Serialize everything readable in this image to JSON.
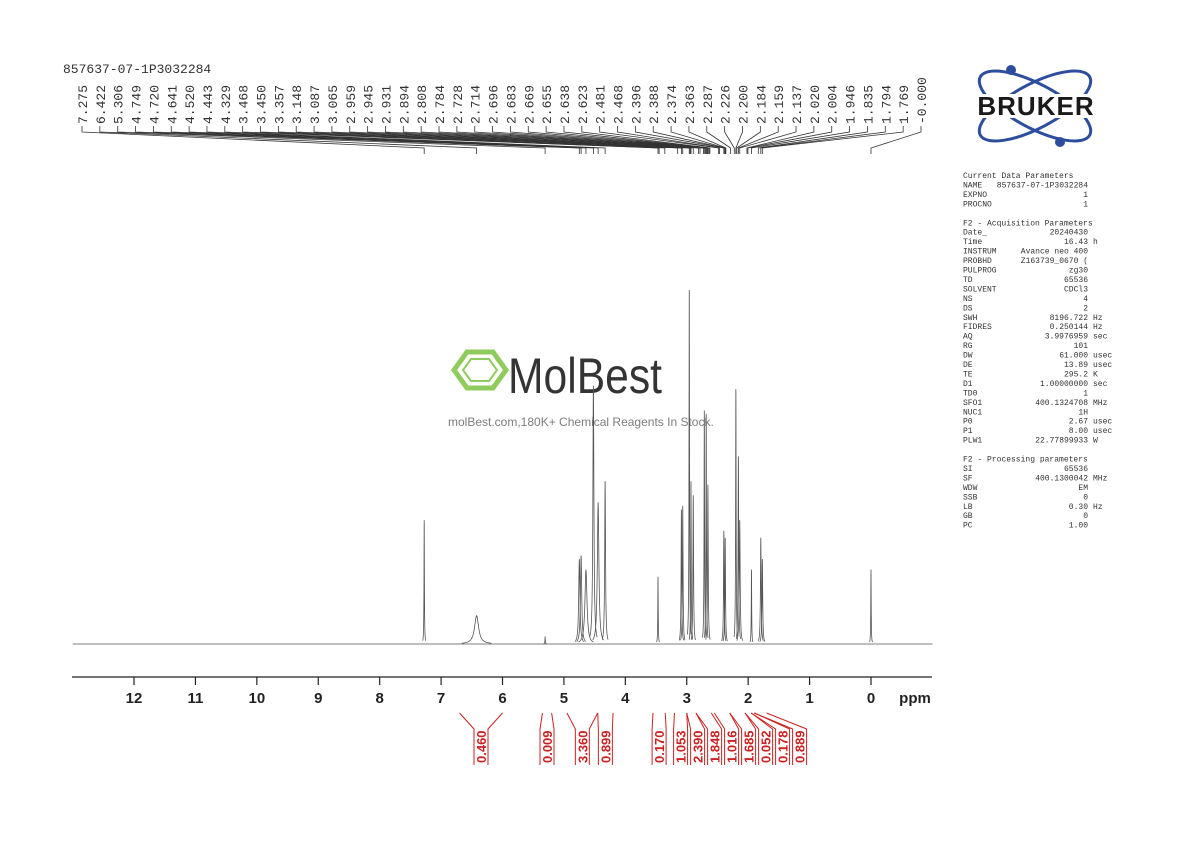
{
  "chart_data": {
    "type": "nmr",
    "title": "857637-07-1P3032284",
    "x_label": "ppm",
    "xlim": [
      13,
      -1
    ],
    "xticks": [
      12,
      11,
      10,
      9,
      8,
      7,
      6,
      5,
      4,
      3,
      2,
      1,
      0
    ],
    "ylim": [
      0,
      100
    ],
    "line_color": "#555555",
    "integral_color": "#cc2222",
    "spectrum_peaks": {
      "ppm": [
        7.275,
        6.422,
        5.306,
        4.749,
        4.72,
        4.641,
        4.52,
        4.443,
        4.329,
        3.468,
        3.087,
        3.065,
        2.959,
        2.931,
        2.894,
        2.714,
        2.683,
        2.655,
        2.396,
        2.374,
        2.2,
        2.159,
        2.137,
        1.946,
        1.794,
        1.769,
        0
      ],
      "height": [
        35,
        8,
        2,
        24,
        25,
        21,
        73,
        40,
        46,
        19,
        38,
        39,
        100,
        46,
        42,
        66,
        65,
        45,
        32,
        30,
        72,
        53,
        35,
        21,
        30,
        24,
        21
      ],
      "width": [
        0.004,
        0.04,
        0.004,
        0.012,
        0.012,
        0.02,
        0.01,
        0.015,
        0.008,
        0.004,
        0.006,
        0.006,
        0.005,
        0.005,
        0.006,
        0.005,
        0.005,
        0.006,
        0.006,
        0.006,
        0.005,
        0.006,
        0.008,
        0.004,
        0.007,
        0.007,
        0.004
      ]
    },
    "peaks": [
      7.275,
      6.422,
      5.306,
      4.749,
      4.72,
      4.641,
      4.52,
      4.443,
      4.329,
      3.468,
      3.45,
      3.357,
      3.148,
      3.087,
      3.065,
      2.959,
      2.945,
      2.931,
      2.894,
      2.808,
      2.784,
      2.728,
      2.714,
      2.696,
      2.683,
      2.669,
      2.655,
      2.638,
      2.623,
      2.481,
      2.468,
      2.396,
      2.388,
      2.374,
      2.363,
      2.287,
      2.226,
      2.2,
      2.184,
      2.159,
      2.137,
      2.02,
      2.004,
      1.946,
      1.835,
      1.794,
      1.769,
      0
    ],
    "peak_labels": [
      "7.275",
      "6.422",
      "5.306",
      "4.749",
      "4.720",
      "4.641",
      "4.520",
      "4.443",
      "4.329",
      "3.468",
      "3.450",
      "3.357",
      "3.148",
      "3.087",
      "3.065",
      "2.959",
      "2.945",
      "2.931",
      "2.894",
      "2.808",
      "2.784",
      "2.728",
      "2.714",
      "2.696",
      "2.683",
      "2.669",
      "2.655",
      "2.638",
      "2.623",
      "2.481",
      "2.468",
      "2.396",
      "2.388",
      "2.374",
      "2.363",
      "2.287",
      "2.226",
      "2.200",
      "2.184",
      "2.159",
      "2.137",
      "2.020",
      "2.004",
      "1.946",
      "1.835",
      "1.794",
      "1.769",
      "-0.000"
    ],
    "integrals": [
      0.46,
      0.009,
      3.36,
      0.899,
      0.17,
      1.053,
      2.39,
      1.848,
      1.016,
      1.685,
      0.052,
      0.178,
      0.889
    ],
    "value_labels": [
      "0.460",
      "0.009",
      "3.360",
      "0.899",
      "0.170",
      "1.053",
      "2.390",
      "1.848",
      "1.016",
      "1.685",
      "0.052",
      "0.178",
      "0.889"
    ],
    "integral_ranges": [
      [
        6.7,
        6.0
      ],
      [
        5.35,
        5.2
      ],
      [
        4.95,
        4.45
      ],
      [
        4.45,
        4.2
      ],
      [
        3.55,
        3.35
      ],
      [
        3.2,
        3.0
      ],
      [
        3.0,
        2.85
      ],
      [
        2.85,
        2.6
      ],
      [
        2.55,
        2.3
      ],
      [
        2.3,
        2.05
      ],
      [
        2.05,
        1.95
      ],
      [
        1.95,
        1.9
      ],
      [
        1.9,
        1.7
      ]
    ]
  },
  "logo": "BRUKER",
  "watermark": {
    "name": "MolBest",
    "tagline": "molBest.com,180K+ Chemical Reagents In Stock."
  },
  "parameters": [
    {
      "heading": "Current Data Parameters",
      "rows": [
        [
          "NAME",
          "857637-07-1P3032284"
        ],
        [
          "EXPNO",
          "1"
        ],
        [
          "PROCNO",
          "1"
        ]
      ]
    },
    {
      "heading": "F2 - Acquisition Parameters",
      "rows": [
        [
          "Date_",
          "20240430"
        ],
        [
          "Time",
          "16.43",
          "h"
        ],
        [
          "INSTRUM",
          "Avance neo 400"
        ],
        [
          "PROBHD",
          "Z163739_0670 ("
        ],
        [
          "PULPROG",
          "zg30"
        ],
        [
          "TD",
          "65536"
        ],
        [
          "SOLVENT",
          "CDCl3"
        ],
        [
          "NS",
          "4"
        ],
        [
          "DS",
          "2"
        ],
        [
          "SWH",
          "8196.722",
          "Hz"
        ],
        [
          "FIDRES",
          "0.250144",
          "Hz"
        ],
        [
          "AQ",
          "3.9976959",
          "sec"
        ],
        [
          "RG",
          "101"
        ],
        [
          "DW",
          "61.000",
          "usec"
        ],
        [
          "DE",
          "13.89",
          "usec"
        ],
        [
          "TE",
          "295.2",
          "K"
        ],
        [
          "D1",
          "1.00000000",
          "sec"
        ],
        [
          "TD0",
          "1"
        ],
        [
          "SFO1",
          "400.1324708",
          "MHz"
        ],
        [
          "NUC1",
          "1H"
        ],
        [
          "P0",
          "2.67",
          "usec"
        ],
        [
          "P1",
          "8.00",
          "usec"
        ],
        [
          "PLW1",
          "22.77899933",
          "W"
        ]
      ]
    },
    {
      "heading": "F2 - Processing parameters",
      "rows": [
        [
          "SI",
          "65536"
        ],
        [
          "SF",
          "400.1300042",
          "MHz"
        ],
        [
          "WDW",
          "EM"
        ],
        [
          "SSB",
          "0"
        ],
        [
          "LB",
          "0.30",
          "Hz"
        ],
        [
          "GB",
          "0"
        ],
        [
          "PC",
          "1.00"
        ]
      ]
    }
  ]
}
